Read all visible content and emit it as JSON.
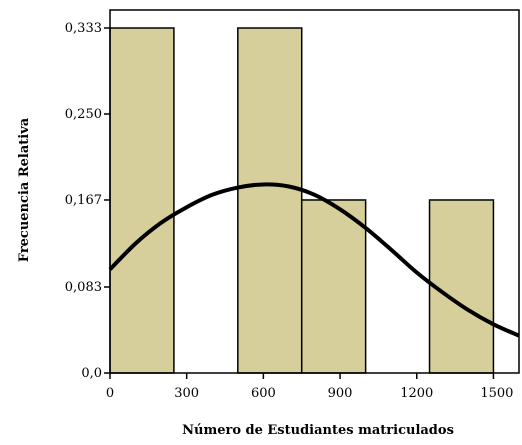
{
  "chart_data": {
    "type": "bar",
    "title": "",
    "xlabel": "Número de Estudiantes matriculados",
    "ylabel": "Frecuencia Relativa",
    "xlim": [
      0,
      1600
    ],
    "ylim": [
      0,
      0.333
    ],
    "x_ticks": [
      0,
      300,
      600,
      900,
      1200,
      1500
    ],
    "x_tick_labels": [
      "0",
      "300",
      "600",
      "900",
      "1200",
      "1500"
    ],
    "y_ticks": [
      0,
      0.083,
      0.167,
      0.25,
      0.333
    ],
    "y_tick_labels": [
      "0,0",
      "0,083",
      "0,167",
      "0,250",
      "0,333"
    ],
    "bins": [
      {
        "start": 0,
        "end": 250,
        "value": 0.333
      },
      {
        "start": 250,
        "end": 500,
        "value": 0
      },
      {
        "start": 500,
        "end": 750,
        "value": 0.333
      },
      {
        "start": 750,
        "end": 1000,
        "value": 0.167
      },
      {
        "start": 1000,
        "end": 1250,
        "value": 0
      },
      {
        "start": 1250,
        "end": 1500,
        "value": 0.167
      }
    ],
    "curve": {
      "type": "normal",
      "points": [
        [
          0,
          0.1
        ],
        [
          100,
          0.125
        ],
        [
          200,
          0.145
        ],
        [
          300,
          0.16
        ],
        [
          400,
          0.172
        ],
        [
          500,
          0.179
        ],
        [
          600,
          0.182
        ],
        [
          700,
          0.18
        ],
        [
          800,
          0.172
        ],
        [
          900,
          0.158
        ],
        [
          1000,
          0.14
        ],
        [
          1100,
          0.119
        ],
        [
          1200,
          0.097
        ],
        [
          1300,
          0.078
        ],
        [
          1400,
          0.061
        ],
        [
          1500,
          0.047
        ],
        [
          1600,
          0.036
        ]
      ]
    },
    "bar_color": "#d6cf9c",
    "bar_edge_color": "#000000",
    "curve_color": "#000000",
    "grid": false,
    "legend": "none"
  }
}
